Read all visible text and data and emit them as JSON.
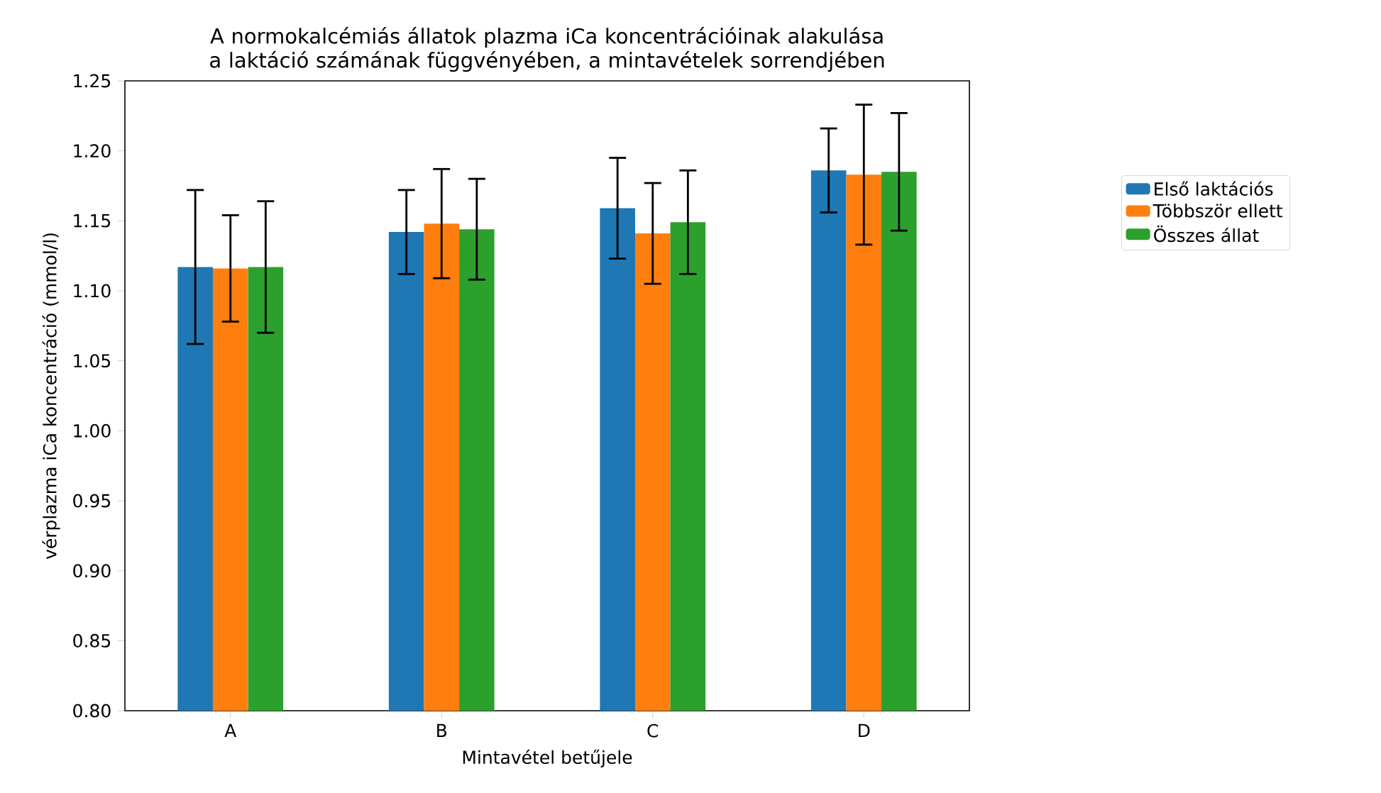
{
  "chart_data": {
    "type": "bar",
    "title": "A normokalcémiás állatok plazma iCa koncentrációinak alakulása a laktáció számának függvényében, a mintavételek sorrendjében",
    "xlabel": "Mintavétel betűjele",
    "ylabel": "vérplazma iCa koncentráció (mmol/l)",
    "categories": [
      "A",
      "B",
      "C",
      "D"
    ],
    "series": [
      {
        "name": "Első laktációs",
        "color": "#1f77b4",
        "values": [
          1.117,
          1.142,
          1.159,
          1.186
        ],
        "errors": [
          0.055,
          0.03,
          0.036,
          0.03
        ]
      },
      {
        "name": "Többször ellett",
        "color": "#ff7f0e",
        "values": [
          1.116,
          1.148,
          1.141,
          1.183
        ],
        "errors": [
          0.038,
          0.039,
          0.036,
          0.05
        ]
      },
      {
        "name": "Összes állat",
        "color": "#2ca02c",
        "values": [
          1.117,
          1.144,
          1.149,
          1.185
        ],
        "errors": [
          0.047,
          0.036,
          0.037,
          0.042
        ]
      }
    ],
    "ylim": [
      0.8,
      1.25
    ],
    "yticks": [
      {
        "value": 0.8,
        "label": "0.80"
      },
      0.85,
      {
        "value": 0.9,
        "label": "0.90"
      },
      0.95,
      {
        "value": 1.0,
        "label": "1.00"
      },
      1.05,
      {
        "value": 1.1,
        "label": "1.10"
      },
      1.15,
      {
        "value": 1.2,
        "label": "1.20"
      },
      1.25
    ],
    "grid": false,
    "legend": "right"
  }
}
